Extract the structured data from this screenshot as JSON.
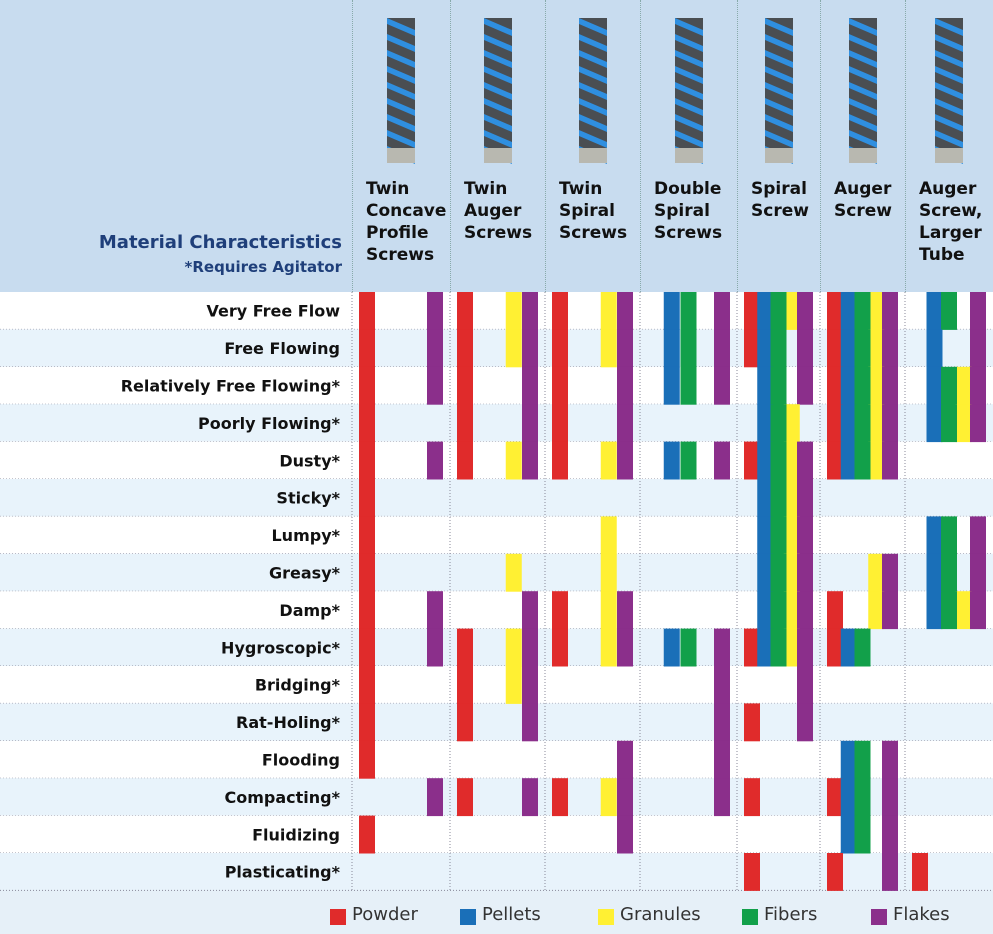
{
  "header": {
    "title": "Material Characteristics",
    "note": "*Requires Agitator"
  },
  "columns": [
    "Twin Concave Profile Screws",
    "Twin Auger Screws",
    "Twin Spiral Screws",
    "Double Spiral Screws",
    "Spiral Screw",
    "Auger Screw",
    "Auger Screw, Larger Tube"
  ],
  "legend": [
    {
      "label": "Powder",
      "color": "#e02b2b"
    },
    {
      "label": "Pellets",
      "color": "#1a6fb8"
    },
    {
      "label": "Granules",
      "color": "#fff033"
    },
    {
      "label": "Fibers",
      "color": "#12a04a"
    },
    {
      "label": "Flakes",
      "color": "#8b2f8b"
    }
  ],
  "rows": [
    {
      "label": "Very Free Flow",
      "cells": [
        [
          0,
          4
        ],
        [
          0,
          2,
          4
        ],
        [
          0,
          2,
          4
        ],
        [
          1,
          3,
          4
        ],
        [
          0,
          1,
          2,
          3,
          4
        ],
        [
          0,
          1,
          2,
          3,
          4
        ],
        [
          1,
          3,
          4
        ]
      ]
    },
    {
      "label": "Free Flowing",
      "cells": [
        [
          0,
          4
        ],
        [
          0,
          2,
          4
        ],
        [
          0,
          2,
          4
        ],
        [
          1,
          3,
          4
        ],
        [
          0,
          1,
          3,
          4
        ],
        [
          0,
          1,
          2,
          3,
          4
        ],
        [
          1,
          4
        ]
      ]
    },
    {
      "label": "Relatively Free Flowing*",
      "cells": [
        [
          0,
          4
        ],
        [
          0,
          4
        ],
        [
          0,
          4
        ],
        [
          1,
          3,
          4
        ],
        [
          1,
          3,
          4
        ],
        [
          0,
          1,
          2,
          3,
          4
        ],
        [
          1,
          2,
          3,
          4
        ]
      ]
    },
    {
      "label": "Poorly Flowing*",
      "cells": [
        [
          0
        ],
        [
          0,
          4
        ],
        [
          0,
          4
        ],
        [],
        [
          1,
          2,
          3
        ],
        [
          0,
          1,
          2,
          3,
          4
        ],
        [
          1,
          2,
          3,
          4
        ]
      ]
    },
    {
      "label": "Dusty*",
      "cells": [
        [
          0,
          4
        ],
        [
          0,
          2,
          4
        ],
        [
          0,
          2,
          4
        ],
        [
          1,
          3,
          4
        ],
        [
          0,
          1,
          2,
          3,
          4
        ],
        [
          0,
          1,
          2,
          3,
          4
        ],
        []
      ]
    },
    {
      "label": "Sticky*",
      "cells": [
        [
          0
        ],
        [],
        [],
        [],
        [
          1,
          2,
          3,
          4
        ],
        [],
        []
      ]
    },
    {
      "label": "Lumpy*",
      "cells": [
        [
          0
        ],
        [],
        [
          2
        ],
        [],
        [
          1,
          2,
          3,
          4
        ],
        [],
        [
          1,
          3,
          4
        ]
      ]
    },
    {
      "label": "Greasy*",
      "cells": [
        [
          0
        ],
        [
          2
        ],
        [
          2
        ],
        [],
        [
          1,
          2,
          3,
          4
        ],
        [
          2,
          4
        ],
        [
          1,
          3,
          4
        ]
      ]
    },
    {
      "label": "Damp*",
      "cells": [
        [
          0,
          4
        ],
        [
          4
        ],
        [
          0,
          2,
          4
        ],
        [],
        [
          1,
          2,
          3,
          4
        ],
        [
          0,
          2,
          4
        ],
        [
          1,
          2,
          3,
          4
        ]
      ]
    },
    {
      "label": "Hygroscopic*",
      "cells": [
        [
          0,
          4
        ],
        [
          0,
          2,
          4
        ],
        [
          0,
          2,
          4
        ],
        [
          1,
          3,
          4
        ],
        [
          0,
          1,
          2,
          3,
          4
        ],
        [
          0,
          1,
          3
        ],
        []
      ]
    },
    {
      "label": "Bridging*",
      "cells": [
        [
          0
        ],
        [
          0,
          2,
          4
        ],
        [],
        [
          4
        ],
        [
          4
        ],
        [],
        []
      ]
    },
    {
      "label": "Rat-Holing*",
      "cells": [
        [
          0
        ],
        [
          0,
          4
        ],
        [],
        [
          4
        ],
        [
          0,
          4
        ],
        [],
        []
      ]
    },
    {
      "label": "Flooding",
      "cells": [
        [
          0
        ],
        [],
        [
          4
        ],
        [
          4
        ],
        [],
        [
          1,
          3,
          4
        ],
        []
      ]
    },
    {
      "label": "Compacting*",
      "cells": [
        [
          4
        ],
        [
          0,
          4
        ],
        [
          0,
          2,
          4
        ],
        [
          4
        ],
        [
          0
        ],
        [
          0,
          1,
          3,
          4
        ],
        []
      ]
    },
    {
      "label": "Fluidizing",
      "cells": [
        [
          0
        ],
        [],
        [
          4
        ],
        [],
        [],
        [
          1,
          3,
          4
        ],
        []
      ]
    },
    {
      "label": "Plasticating*",
      "cells": [
        [],
        [],
        [],
        [],
        [
          0
        ],
        [
          0,
          4
        ],
        [
          0
        ]
      ]
    }
  ]
}
